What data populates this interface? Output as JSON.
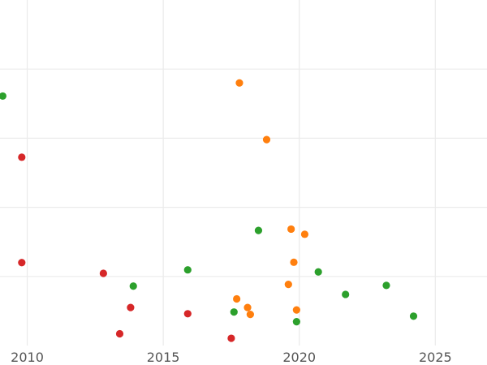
{
  "chart_data": {
    "type": "scatter",
    "title": "",
    "xlabel": "",
    "ylabel": "",
    "xlim": [
      2009,
      2026.9
    ],
    "ylim": [
      0,
      1
    ],
    "x_ticks": [
      2010,
      2015,
      2020,
      2025
    ],
    "y_gridlines": [
      0.2,
      0.4,
      0.6,
      0.8
    ],
    "grid": true,
    "legend": "none",
    "colors": {
      "red": "#d62728",
      "green": "#2ca02c",
      "orange": "#ff7f0e"
    },
    "series": [
      {
        "color": "red",
        "points": [
          {
            "x": 2009.8,
            "y": 0.545
          },
          {
            "x": 2009.8,
            "y": 0.24
          },
          {
            "x": 2012.8,
            "y": 0.209
          },
          {
            "x": 2013.8,
            "y": 0.11
          },
          {
            "x": 2013.4,
            "y": 0.034
          },
          {
            "x": 2015.9,
            "y": 0.092
          },
          {
            "x": 2017.5,
            "y": 0.021
          }
        ]
      },
      {
        "color": "green",
        "points": [
          {
            "x": 2009.1,
            "y": 0.722
          },
          {
            "x": 2013.9,
            "y": 0.172
          },
          {
            "x": 2015.9,
            "y": 0.219
          },
          {
            "x": 2017.6,
            "y": 0.097
          },
          {
            "x": 2018.5,
            "y": 0.333
          },
          {
            "x": 2019.9,
            "y": 0.069
          },
          {
            "x": 2020.7,
            "y": 0.213
          },
          {
            "x": 2021.7,
            "y": 0.148
          },
          {
            "x": 2023.2,
            "y": 0.174
          },
          {
            "x": 2024.2,
            "y": 0.085
          }
        ]
      },
      {
        "color": "orange",
        "points": [
          {
            "x": 2017.8,
            "y": 0.76
          },
          {
            "x": 2018.8,
            "y": 0.596
          },
          {
            "x": 2019.7,
            "y": 0.337
          },
          {
            "x": 2020.2,
            "y": 0.322
          },
          {
            "x": 2019.8,
            "y": 0.241
          },
          {
            "x": 2019.6,
            "y": 0.177
          },
          {
            "x": 2017.7,
            "y": 0.135
          },
          {
            "x": 2018.1,
            "y": 0.11
          },
          {
            "x": 2018.2,
            "y": 0.09
          },
          {
            "x": 2019.9,
            "y": 0.103
          }
        ]
      }
    ]
  }
}
